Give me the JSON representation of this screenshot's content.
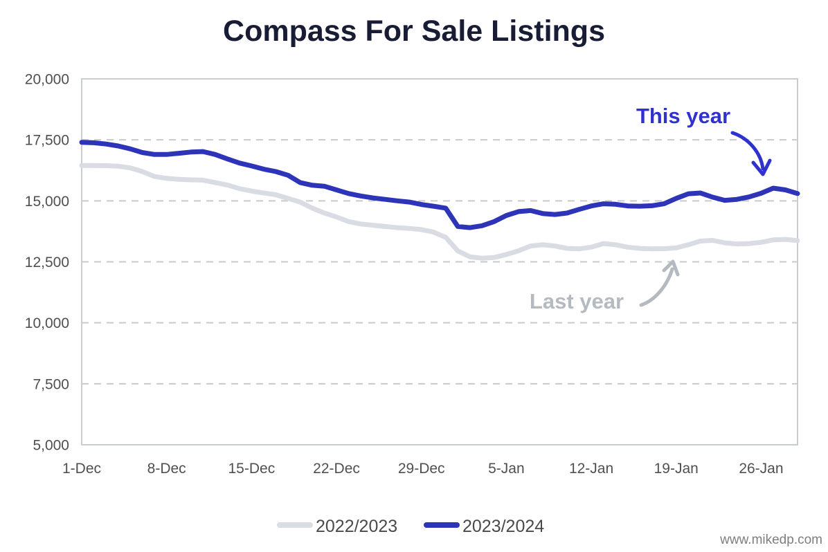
{
  "title": "Compass For Sale Listings",
  "watermark": "www.mikedp.com",
  "annotations": {
    "this_year": {
      "label": "This year",
      "color": "#3032cf"
    },
    "last_year": {
      "label": "Last year",
      "color": "#b5b9c0"
    }
  },
  "chart_data": {
    "type": "line",
    "title": "Compass For Sale Listings",
    "xlabel": "",
    "ylabel": "",
    "grid": "horizontal-dashed",
    "legend_position": "bottom",
    "ylim": [
      5000,
      20000
    ],
    "y_ticks": [
      5000,
      7500,
      10000,
      12500,
      15000,
      17500,
      20000
    ],
    "y_tick_labels": [
      "5,000",
      "7,500",
      "10,000",
      "12,500",
      "15,000",
      "17,500",
      "20,000"
    ],
    "x_tick_labels": [
      "1-Dec",
      "8-Dec",
      "15-Dec",
      "22-Dec",
      "29-Dec",
      "5-Jan",
      "12-Jan",
      "19-Jan",
      "26-Jan"
    ],
    "x_tick_step": 7,
    "x": [
      "1-Dec",
      "2-Dec",
      "3-Dec",
      "4-Dec",
      "5-Dec",
      "6-Dec",
      "7-Dec",
      "8-Dec",
      "9-Dec",
      "10-Dec",
      "11-Dec",
      "12-Dec",
      "13-Dec",
      "14-Dec",
      "15-Dec",
      "16-Dec",
      "17-Dec",
      "18-Dec",
      "19-Dec",
      "20-Dec",
      "21-Dec",
      "22-Dec",
      "23-Dec",
      "24-Dec",
      "25-Dec",
      "26-Dec",
      "27-Dec",
      "28-Dec",
      "29-Dec",
      "30-Dec",
      "31-Dec",
      "1-Jan",
      "2-Jan",
      "3-Jan",
      "4-Jan",
      "5-Jan",
      "6-Jan",
      "7-Jan",
      "8-Jan",
      "9-Jan",
      "10-Jan",
      "11-Jan",
      "12-Jan",
      "13-Jan",
      "14-Jan",
      "15-Jan",
      "16-Jan",
      "17-Jan",
      "18-Jan",
      "19-Jan",
      "20-Jan",
      "21-Jan",
      "22-Jan",
      "23-Jan",
      "24-Jan",
      "25-Jan",
      "26-Jan",
      "27-Jan",
      "28-Jan",
      "29-Jan"
    ],
    "series": [
      {
        "name": "2022/2023",
        "color": "#d9dce3",
        "values": [
          16450,
          16450,
          16440,
          16420,
          16350,
          16200,
          16000,
          15920,
          15880,
          15860,
          15850,
          15750,
          15650,
          15500,
          15400,
          15320,
          15250,
          15100,
          14950,
          14700,
          14500,
          14340,
          14150,
          14050,
          14000,
          13950,
          13900,
          13870,
          13820,
          13720,
          13500,
          12950,
          12700,
          12650,
          12680,
          12800,
          12950,
          13150,
          13200,
          13150,
          13050,
          13030,
          13100,
          13250,
          13200,
          13100,
          13050,
          13030,
          13040,
          13070,
          13200,
          13350,
          13380,
          13280,
          13230,
          13250,
          13300,
          13400,
          13420,
          13370
        ]
      },
      {
        "name": "2023/2024",
        "color": "#2e34b8",
        "values": [
          17400,
          17380,
          17330,
          17250,
          17130,
          16980,
          16900,
          16900,
          16950,
          17000,
          17020,
          16900,
          16720,
          16550,
          16430,
          16300,
          16200,
          16050,
          15750,
          15640,
          15600,
          15450,
          15300,
          15200,
          15120,
          15060,
          15000,
          14950,
          14850,
          14780,
          14700,
          13950,
          13900,
          13980,
          14150,
          14400,
          14560,
          14600,
          14480,
          14440,
          14500,
          14650,
          14790,
          14880,
          14860,
          14790,
          14780,
          14800,
          14880,
          15100,
          15290,
          15320,
          15150,
          15020,
          15060,
          15160,
          15310,
          15520,
          15450,
          15300
        ]
      }
    ]
  }
}
